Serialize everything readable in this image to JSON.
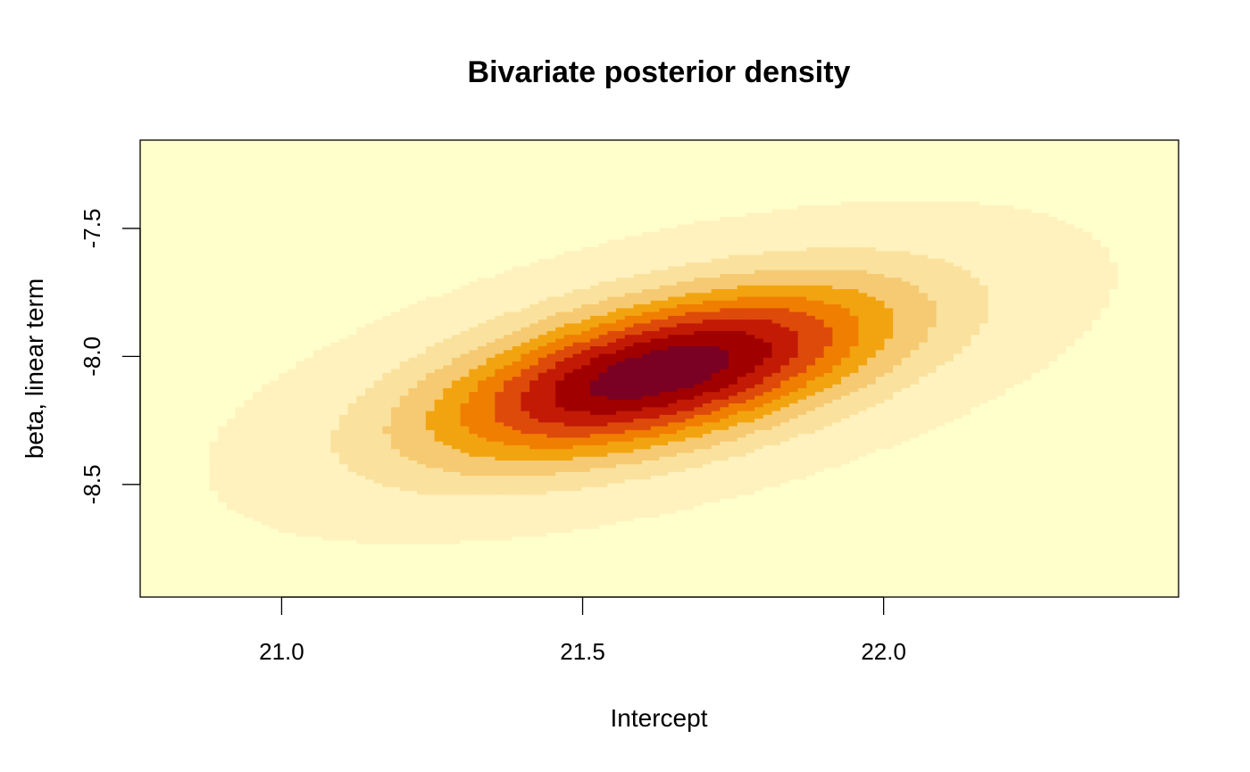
{
  "chart_data": {
    "type": "heatmap",
    "title": "Bivariate posterior density",
    "xlabel": "Intercept",
    "ylabel": "beta, linear term",
    "xlim": [
      20.765,
      22.49
    ],
    "ylim": [
      -8.94,
      -7.155
    ],
    "x_ticks": [
      21.0,
      21.5,
      22.0
    ],
    "x_tick_labels": [
      "21.0",
      "21.5",
      "22.0"
    ],
    "y_ticks": [
      -7.5,
      -8.0,
      -8.5
    ],
    "y_tick_labels": [
      "-7.5",
      "-8.0",
      "-8.5"
    ],
    "grid": false,
    "grid_resolution": [
      120,
      120
    ],
    "density": {
      "distribution": "bivariate normal",
      "mean_x": 21.63,
      "mean_y": -8.06,
      "sd_x": 0.27,
      "sd_y": 0.24,
      "correlation": 0.56
    },
    "color_levels": [
      "#FFFFCC",
      "#FFF2BE",
      "#FAE29E",
      "#F6CA72",
      "#F2A410",
      "#F07E00",
      "#DD4A0A",
      "#C21A05",
      "#A00000",
      "#7A0024"
    ],
    "level_breaks": [
      0.02,
      0.13,
      0.24,
      0.36,
      0.47,
      0.58,
      0.69,
      0.8,
      0.91
    ]
  }
}
